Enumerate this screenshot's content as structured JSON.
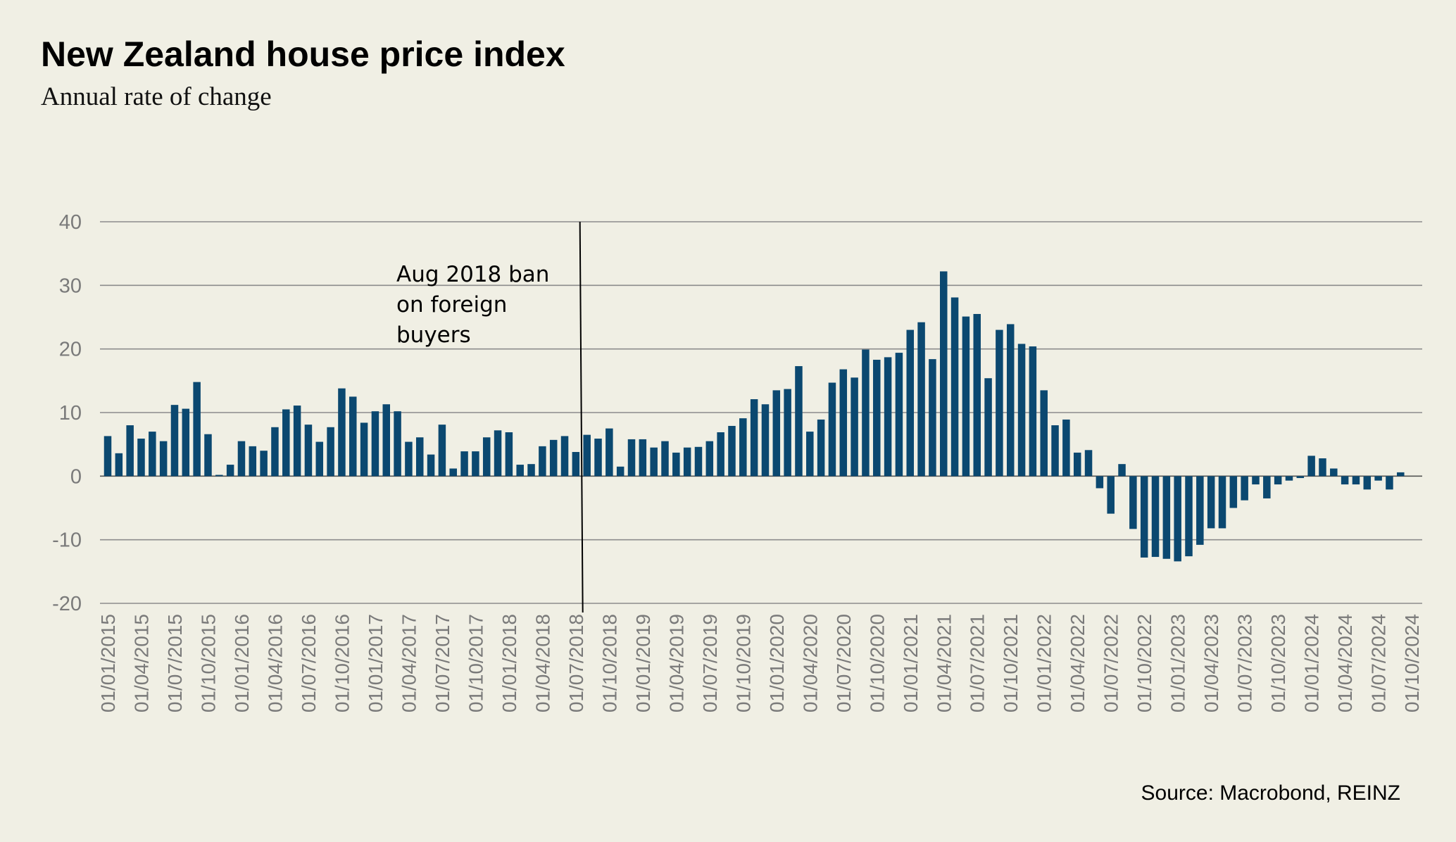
{
  "chart_data": {
    "type": "bar",
    "title": "New Zealand house price index",
    "subtitle": "Annual rate of change",
    "source": "Source: Macrobond, REINZ",
    "xlabel": "",
    "ylabel": "",
    "ylim": [
      -20,
      40
    ],
    "yticks": [
      40,
      30,
      20,
      10,
      0,
      -10,
      -20
    ],
    "grid": true,
    "bar_color": "#0b4870",
    "frequency": "monthly",
    "start": "01/01/2015",
    "xtick_labels": [
      "01/01/2015",
      "01/04/2015",
      "01/07/2015",
      "01/10/2015",
      "01/01/2016",
      "01/04/2016",
      "01/07/2016",
      "01/10/2016",
      "01/01/2017",
      "01/04/2017",
      "01/07/2017",
      "01/10/2017",
      "01/01/2018",
      "01/04/2018",
      "01/07/2018",
      "01/10/2018",
      "01/01/2019",
      "01/04/2019",
      "01/07/2019",
      "01/10/2019",
      "01/01/2020",
      "01/04/2020",
      "01/07/2020",
      "01/10/2020",
      "01/01/2021",
      "01/04/2021",
      "01/07/2021",
      "01/10/2021",
      "01/01/2022",
      "01/04/2022",
      "01/07/2022",
      "01/10/2022",
      "01/01/2023",
      "01/04/2023",
      "01/07/2023",
      "01/10/2023",
      "01/01/2024",
      "01/04/2024",
      "01/07/2024",
      "01/10/2024"
    ],
    "values": [
      6.3,
      3.6,
      8.0,
      5.9,
      7.0,
      5.5,
      11.2,
      10.6,
      14.8,
      6.6,
      0.2,
      1.8,
      5.5,
      4.7,
      4.0,
      7.7,
      10.5,
      11.1,
      8.1,
      5.4,
      7.7,
      13.8,
      12.5,
      8.4,
      10.2,
      11.3,
      10.2,
      5.4,
      6.1,
      3.4,
      8.1,
      1.2,
      3.9,
      3.9,
      6.1,
      7.2,
      6.9,
      1.8,
      1.9,
      4.7,
      5.7,
      6.3,
      3.8,
      6.5,
      5.9,
      7.5,
      1.5,
      5.8,
      5.8,
      4.5,
      5.5,
      3.7,
      4.5,
      4.6,
      5.5,
      6.9,
      7.9,
      9.1,
      12.1,
      11.3,
      13.5,
      13.7,
      17.3,
      7.0,
      8.9,
      14.7,
      16.8,
      15.5,
      19.9,
      18.3,
      18.7,
      19.4,
      23.0,
      24.2,
      18.4,
      32.2,
      28.1,
      25.1,
      25.5,
      15.4,
      23.0,
      23.9,
      20.8,
      20.4,
      13.5,
      8.0,
      8.9,
      3.7,
      4.1,
      -1.9,
      -5.9,
      1.9,
      -8.3,
      -12.8,
      -12.7,
      -13.0,
      -13.4,
      -12.6,
      -10.8,
      -8.2,
      -8.2,
      -5.0,
      -3.8,
      -1.3,
      -3.5,
      -1.3,
      -0.7,
      -0.3,
      3.2,
      2.8,
      1.2,
      -1.3,
      -1.3,
      -2.1,
      -0.7,
      -2.1,
      0.6
    ],
    "annotation": {
      "lines": [
        "Aug 2018 ban",
        "on foreign",
        "buyers"
      ],
      "marker_at": "Aug 2018",
      "marker_index": 43
    }
  }
}
